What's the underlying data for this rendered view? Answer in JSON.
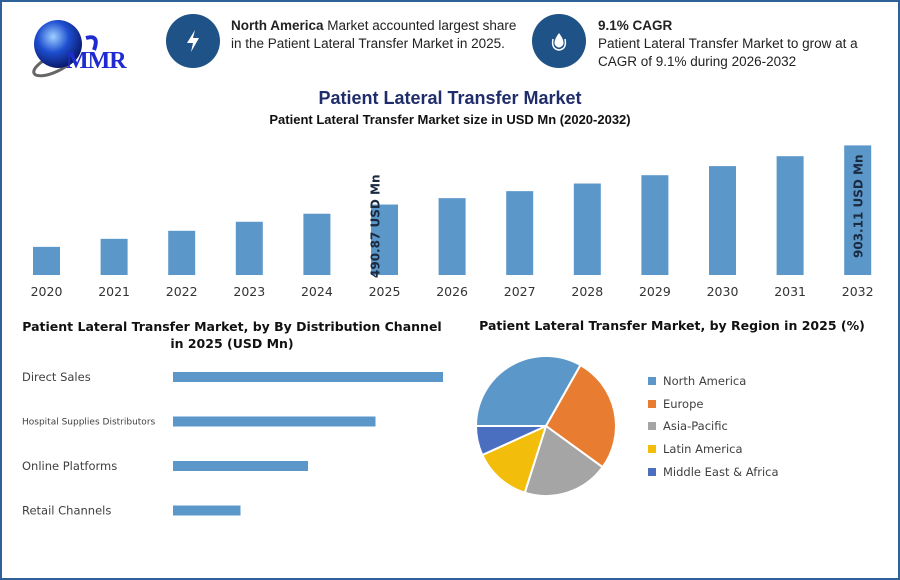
{
  "logo": {
    "text": "MMR"
  },
  "info_cards": [
    {
      "icon": "lightning-icon",
      "bold": "North America",
      "text": " Market accounted largest share in the Patient Lateral Transfer Market in 2025."
    },
    {
      "icon": "growth-drop-icon",
      "bold": "9.1% CAGR",
      "text": "Patient Lateral Transfer Market to grow at a CAGR of 9.1% during 2026-2032"
    }
  ],
  "colors": {
    "accent": "#1f5286",
    "bar": "#5b97c9",
    "title": "#1f2d6b"
  },
  "chart_data": [
    {
      "type": "bar",
      "title": "Patient Lateral Transfer Market",
      "subtitle": "Patient Lateral Transfer Market size in USD Mn (2020-2032)",
      "categories": [
        "2020",
        "2021",
        "2022",
        "2023",
        "2024",
        "2025",
        "2026",
        "2027",
        "2028",
        "2029",
        "2030",
        "2031",
        "2032"
      ],
      "values": [
        196,
        252,
        308,
        371,
        427,
        490.87,
        535.5,
        584.3,
        637.5,
        695.5,
        758.8,
        827.8,
        903.11
      ],
      "data_labels": {
        "2025": "490.87 USD Mn",
        "2032": "903.11 USD Mn"
      },
      "ylim": [
        0,
        903.11
      ],
      "grid": false
    },
    {
      "type": "bar",
      "orientation": "horizontal",
      "title": "Patient Lateral Transfer Market, by By Distribution Channel in 2025 (USD Mn)",
      "categories": [
        "Direct Sales",
        "Hospital Supplies Distributors",
        "Online Platforms",
        "Retail Channels"
      ],
      "values": [
        4,
        3,
        2,
        1
      ],
      "grid": false
    },
    {
      "type": "pie",
      "title": "Patient Lateral Transfer Market, by Region in 2025 (%)",
      "categories": [
        "North America",
        "Europe",
        "Asia-Pacific",
        "Latin America",
        "Middle East & Africa"
      ],
      "values": [
        33.2,
        26.8,
        19.9,
        13.3,
        6.8
      ],
      "colors": [
        "#5b97c9",
        "#e87d32",
        "#a5a5a5",
        "#f2bd0b",
        "#4a6fc1"
      ],
      "legend": "right"
    }
  ]
}
